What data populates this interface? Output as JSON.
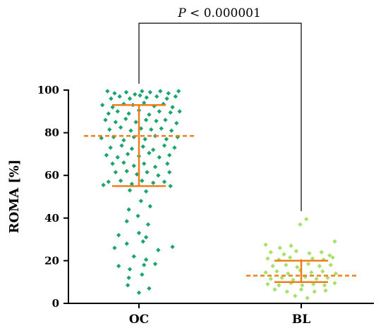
{
  "chart_data": {
    "type": "scatter",
    "title": "",
    "xlabel": "",
    "ylabel": "ROMA [%]",
    "ylim": [
      0,
      100
    ],
    "yticks": [
      0,
      20,
      40,
      60,
      80,
      100
    ],
    "categories": [
      "OC",
      "BL"
    ],
    "grid": false,
    "legend": "none",
    "significance": {
      "text": "P < 0.000001",
      "p_symbol": "P",
      "rest": " < 0.000001",
      "between": [
        "OC",
        "BL"
      ]
    },
    "series": [
      {
        "category": "OC",
        "color": "#1aa66b",
        "median": 78.5,
        "q1": 55,
        "q3": 93,
        "points": [
          [
            -0.62,
            99.5
          ],
          [
            -0.48,
            98.5
          ],
          [
            -0.25,
            99
          ],
          [
            -0.08,
            98
          ],
          [
            0.06,
            99.5
          ],
          [
            0.22,
            99
          ],
          [
            0.42,
            99.5
          ],
          [
            0.58,
            98.5
          ],
          [
            0.78,
            99.5
          ],
          [
            -0.55,
            96
          ],
          [
            -0.38,
            97
          ],
          [
            -0.18,
            96
          ],
          [
            0.02,
            97.5
          ],
          [
            0.15,
            96.5
          ],
          [
            0.35,
            97
          ],
          [
            0.55,
            96
          ],
          [
            0.72,
            97
          ],
          [
            -0.72,
            93
          ],
          [
            -0.52,
            92
          ],
          [
            -0.3,
            93.5
          ],
          [
            -0.12,
            93
          ],
          [
            0.1,
            94
          ],
          [
            0.3,
            92.5
          ],
          [
            0.48,
            93.5
          ],
          [
            0.66,
            92
          ],
          [
            -0.6,
            89
          ],
          [
            -0.42,
            90
          ],
          [
            -0.2,
            89
          ],
          [
            0.0,
            90.5
          ],
          [
            0.2,
            88.5
          ],
          [
            0.4,
            90
          ],
          [
            0.62,
            89.5
          ],
          [
            0.8,
            90
          ],
          [
            -0.66,
            86
          ],
          [
            -0.46,
            85
          ],
          [
            -0.26,
            86.5
          ],
          [
            -0.06,
            85
          ],
          [
            0.14,
            86
          ],
          [
            0.34,
            85.5
          ],
          [
            0.52,
            86
          ],
          [
            0.74,
            84.5
          ],
          [
            -0.58,
            81.5
          ],
          [
            -0.36,
            82.5
          ],
          [
            -0.16,
            81
          ],
          [
            0.04,
            82
          ],
          [
            0.24,
            81.5
          ],
          [
            0.44,
            82
          ],
          [
            0.64,
            81
          ],
          [
            -0.74,
            77.5
          ],
          [
            -0.5,
            78
          ],
          [
            -0.3,
            76.5
          ],
          [
            -0.1,
            78
          ],
          [
            0.12,
            77
          ],
          [
            0.32,
            78.5
          ],
          [
            0.54,
            77
          ],
          [
            0.76,
            78
          ],
          [
            -0.56,
            73
          ],
          [
            -0.34,
            74
          ],
          [
            -0.14,
            72.5
          ],
          [
            0.08,
            73.5
          ],
          [
            0.28,
            72
          ],
          [
            0.5,
            74
          ],
          [
            0.7,
            73
          ],
          [
            -0.64,
            69.5
          ],
          [
            -0.42,
            68.5
          ],
          [
            -0.22,
            70
          ],
          [
            0.0,
            69
          ],
          [
            0.2,
            70.5
          ],
          [
            0.4,
            68.5
          ],
          [
            0.6,
            69.5
          ],
          [
            -0.52,
            65.5
          ],
          [
            -0.3,
            66
          ],
          [
            -0.1,
            64.5
          ],
          [
            0.1,
            65.5
          ],
          [
            0.32,
            64
          ],
          [
            0.56,
            65.5
          ],
          [
            -0.46,
            61.5
          ],
          [
            -0.24,
            62
          ],
          [
            -0.04,
            60.5
          ],
          [
            0.16,
            61.5
          ],
          [
            0.38,
            60
          ],
          [
            0.6,
            61.5
          ],
          [
            -0.6,
            57
          ],
          [
            -0.36,
            57.5
          ],
          [
            -0.14,
            56
          ],
          [
            0.06,
            57.5
          ],
          [
            0.28,
            56.5
          ],
          [
            0.5,
            57
          ],
          [
            -0.7,
            55.5
          ],
          [
            -0.18,
            53
          ],
          [
            0.14,
            52.5
          ],
          [
            0.62,
            55
          ],
          [
            0.04,
            48
          ],
          [
            -0.2,
            44
          ],
          [
            0.22,
            45.5
          ],
          [
            -0.02,
            41
          ],
          [
            0.18,
            37
          ],
          [
            -0.24,
            38.5
          ],
          [
            -0.4,
            32
          ],
          [
            0.0,
            33
          ],
          [
            0.14,
            31
          ],
          [
            -0.48,
            26
          ],
          [
            -0.24,
            28
          ],
          [
            0.08,
            29
          ],
          [
            0.38,
            25
          ],
          [
            0.66,
            26.5
          ],
          [
            -0.1,
            22
          ],
          [
            0.14,
            20.5
          ],
          [
            -0.4,
            17.5
          ],
          [
            -0.18,
            16
          ],
          [
            0.1,
            18
          ],
          [
            0.32,
            18.5
          ],
          [
            -0.2,
            12
          ],
          [
            0.06,
            13.5
          ],
          [
            -0.22,
            8.5
          ],
          [
            0.2,
            7
          ],
          [
            0.0,
            5
          ]
        ]
      },
      {
        "category": "BL",
        "color": "#a6e26a",
        "median": 13,
        "q1": 10,
        "q3": 20,
        "points": [
          [
            0.1,
            39.5
          ],
          [
            -0.02,
            37
          ],
          [
            -0.7,
            27.5
          ],
          [
            0.66,
            29
          ],
          [
            -0.42,
            26
          ],
          [
            -0.2,
            27
          ],
          [
            -0.6,
            24
          ],
          [
            -0.34,
            23
          ],
          [
            -0.1,
            24.5
          ],
          [
            0.16,
            23.5
          ],
          [
            0.4,
            24
          ],
          [
            0.56,
            22.5
          ],
          [
            -0.66,
            21
          ],
          [
            -0.44,
            20.5
          ],
          [
            -0.22,
            21.5
          ],
          [
            0.0,
            20
          ],
          [
            0.22,
            21
          ],
          [
            0.44,
            20.5
          ],
          [
            0.62,
            21.5
          ],
          [
            -0.56,
            17.5
          ],
          [
            -0.3,
            18
          ],
          [
            -0.08,
            17
          ],
          [
            0.14,
            18.5
          ],
          [
            0.36,
            17.5
          ],
          [
            0.58,
            18
          ],
          [
            -0.7,
            14.5
          ],
          [
            -0.48,
            15
          ],
          [
            -0.26,
            14
          ],
          [
            -0.02,
            15.5
          ],
          [
            0.2,
            14.5
          ],
          [
            0.42,
            15
          ],
          [
            0.68,
            14
          ],
          [
            -0.6,
            11.5
          ],
          [
            -0.38,
            12
          ],
          [
            -0.16,
            11
          ],
          [
            0.08,
            12.5
          ],
          [
            0.3,
            11.5
          ],
          [
            0.52,
            12
          ],
          [
            -0.66,
            9
          ],
          [
            -0.44,
            8.5
          ],
          [
            -0.2,
            9.5
          ],
          [
            0.02,
            8.5
          ],
          [
            0.24,
            9
          ],
          [
            0.46,
            8.5
          ],
          [
            0.66,
            9.5
          ],
          [
            -0.52,
            6.5
          ],
          [
            -0.28,
            5.5
          ],
          [
            0.0,
            6.5
          ],
          [
            0.26,
            5.5
          ],
          [
            0.48,
            6
          ],
          [
            -0.12,
            3.5
          ],
          [
            0.12,
            2.5
          ]
        ]
      }
    ],
    "summary_color": "#f07d1c"
  }
}
